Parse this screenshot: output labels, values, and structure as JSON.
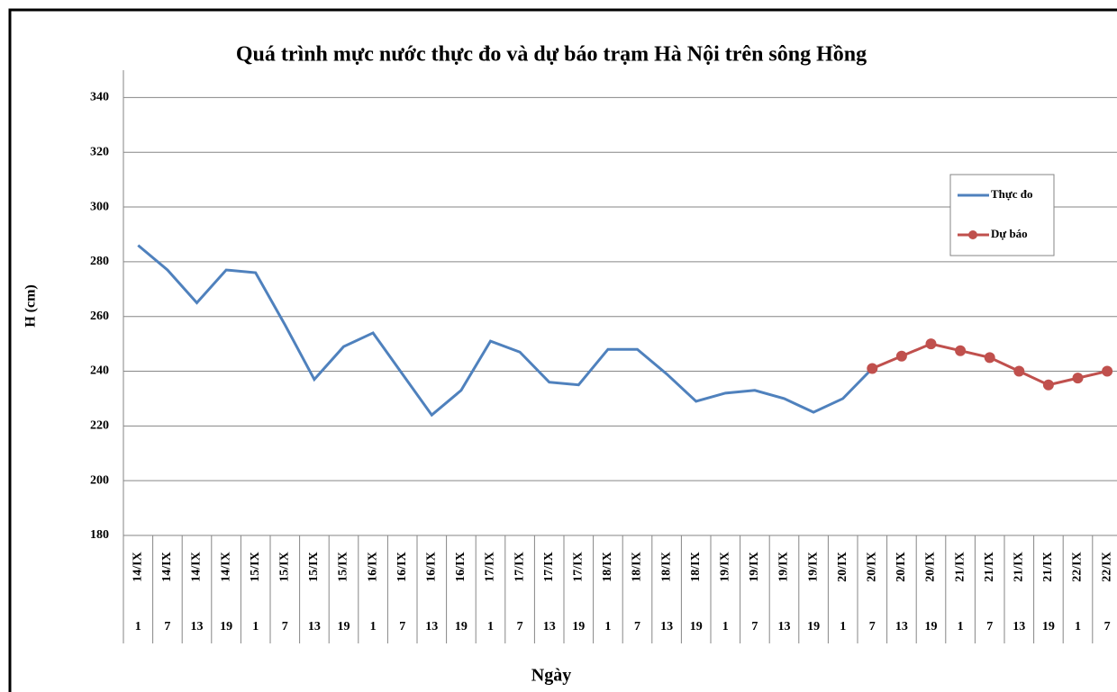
{
  "chart_data": {
    "type": "line",
    "title": "Quá trình mực nước thực đo và dự báo trạm Hà Nội trên sông Hồng",
    "y_label": "H (cm)",
    "x_label": "Ngày",
    "categories": [
      "14/IX",
      "14/IX",
      "14/IX",
      "14/IX",
      "15/IX",
      "15/IX",
      "15/IX",
      "15/IX",
      "16/IX",
      "16/IX",
      "16/IX",
      "16/IX",
      "17/IX",
      "17/IX",
      "17/IX",
      "17/IX",
      "18/IX",
      "18/IX",
      "18/IX",
      "18/IX",
      "19/IX",
      "19/IX",
      "19/IX",
      "19/IX",
      "20/IX",
      "20/IX",
      "20/IX",
      "20/IX",
      "21/IX",
      "21/IX",
      "21/IX",
      "21/IX",
      "22/IX",
      "22/IX"
    ],
    "hours": [
      "1",
      "7",
      "13",
      "19",
      "1",
      "7",
      "13",
      "19",
      "1",
      "7",
      "13",
      "19",
      "1",
      "7",
      "13",
      "19",
      "1",
      "7",
      "13",
      "19",
      "1",
      "7",
      "13",
      "19",
      "1",
      "7",
      "13",
      "19",
      "1",
      "7",
      "13",
      "19",
      "1",
      "7"
    ],
    "series": [
      {
        "name": "Thực đo",
        "color": "#4f81bd",
        "markers": false,
        "values": [
          286,
          277,
          265,
          277,
          276,
          257,
          237,
          249,
          254,
          239,
          224,
          233,
          251,
          247,
          236,
          235,
          248,
          248,
          239,
          229,
          232,
          233,
          230,
          225,
          230,
          241,
          null,
          null,
          null,
          null,
          null,
          null,
          null,
          null
        ]
      },
      {
        "name": "Dự báo",
        "color": "#c0504d",
        "markers": true,
        "values": [
          null,
          null,
          null,
          null,
          null,
          null,
          null,
          null,
          null,
          null,
          null,
          null,
          null,
          null,
          null,
          null,
          null,
          null,
          null,
          null,
          null,
          null,
          null,
          null,
          null,
          241,
          245.5,
          250,
          247.5,
          245,
          240,
          235,
          237.5,
          240
        ]
      }
    ],
    "ylim": [
      180,
      350
    ],
    "yticks": [
      180,
      200,
      220,
      240,
      260,
      280,
      300,
      320,
      340
    ],
    "grid": true
  }
}
